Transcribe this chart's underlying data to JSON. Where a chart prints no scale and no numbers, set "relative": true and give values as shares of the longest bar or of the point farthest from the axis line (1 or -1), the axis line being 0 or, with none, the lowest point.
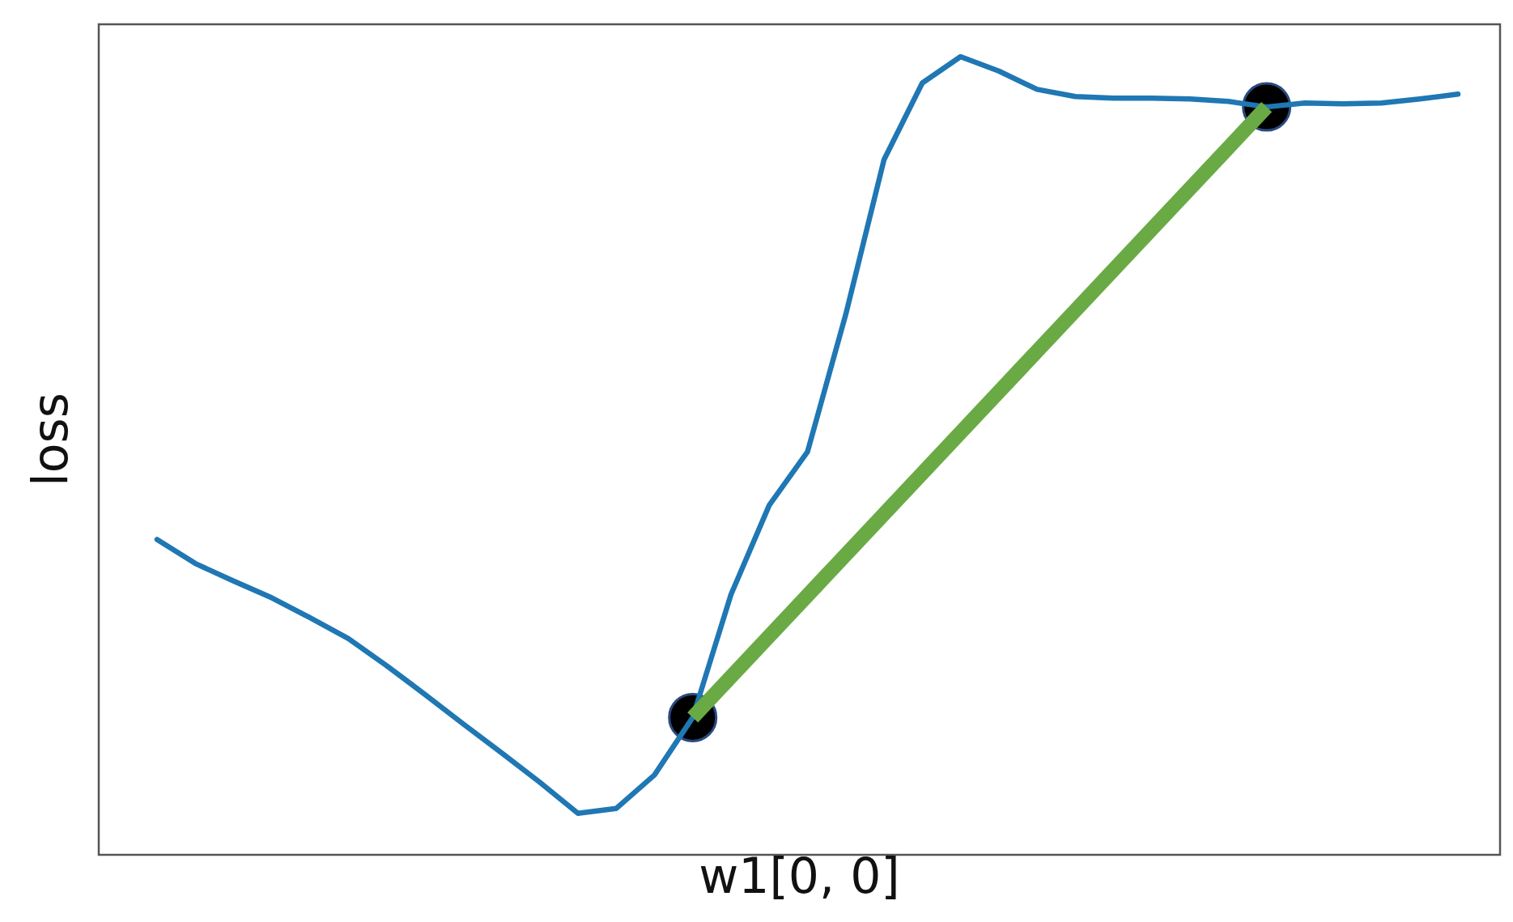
{
  "chart_data": {
    "type": "line",
    "relative": true,
    "xlabel": "w1[0, 0]",
    "ylabel": "loss",
    "categories": [
      null,
      null,
      null,
      null,
      null,
      null,
      null,
      null,
      null,
      null,
      null,
      null,
      null,
      null,
      null,
      null,
      null,
      null,
      null,
      null,
      null,
      null,
      null,
      null,
      null,
      null,
      null,
      null,
      null,
      null,
      null,
      null,
      null,
      null,
      null
    ],
    "series": [
      {
        "color": "#1f77b4",
        "values": [
          0.395,
          0.365,
          0.343,
          0.322,
          0.297,
          0.271,
          0.237,
          0.201,
          0.164,
          0.128,
          0.091,
          0.052,
          0.058,
          0.1,
          0.172,
          0.326,
          0.438,
          0.505,
          0.677,
          0.871,
          0.967,
          1,
          0.982,
          0.959,
          0.95,
          0.948,
          0.948,
          0.947,
          0.944,
          0.937,
          0.942,
          0.941,
          0.942,
          0.947,
          0.953
        ]
      },
      {
        "color": "#6aaa45",
        "values": [
          null,
          null,
          null,
          null,
          null,
          null,
          null,
          null,
          null,
          null,
          null,
          null,
          null,
          null,
          0.172,
          null,
          null,
          null,
          null,
          null,
          null,
          null,
          null,
          null,
          null,
          null,
          null,
          null,
          null,
          0.937,
          null,
          null,
          null,
          null,
          null
        ]
      }
    ]
  }
}
